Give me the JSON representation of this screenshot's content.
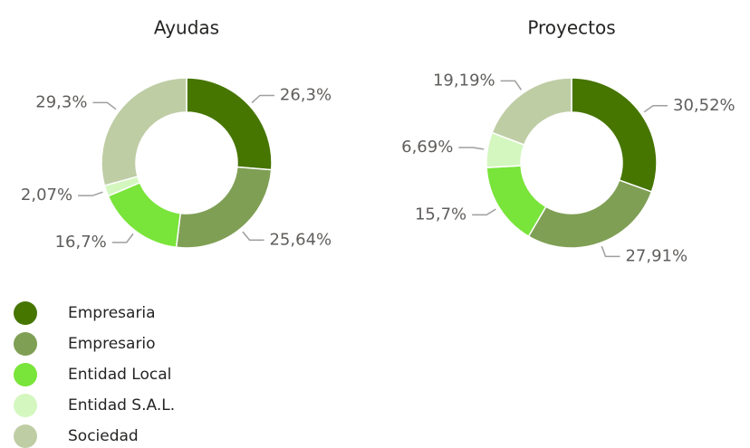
{
  "legend": {
    "items": [
      "Empresaria",
      "Empresario",
      "Entidad Local",
      "Entidad S.A.L.",
      "Sociedad"
    ],
    "colors": [
      "#467500",
      "#7f9f55",
      "#79e43a",
      "#d4f7c0",
      "#bfcda5"
    ]
  },
  "chart_data": [
    {
      "type": "donut",
      "title": "Ayudas",
      "values": [
        26.3,
        25.64,
        16.7,
        2.07,
        29.3
      ],
      "value_labels": [
        "26,3%",
        "25,64%",
        "16,7%",
        "2,07%",
        "29,3%"
      ]
    },
    {
      "type": "donut",
      "title": "Proyectos",
      "values": [
        30.52,
        27.91,
        15.7,
        6.69,
        19.19
      ],
      "value_labels": [
        "30,52%",
        "27,91%",
        "15,7%",
        "6,69%",
        "19,19%"
      ]
    }
  ]
}
